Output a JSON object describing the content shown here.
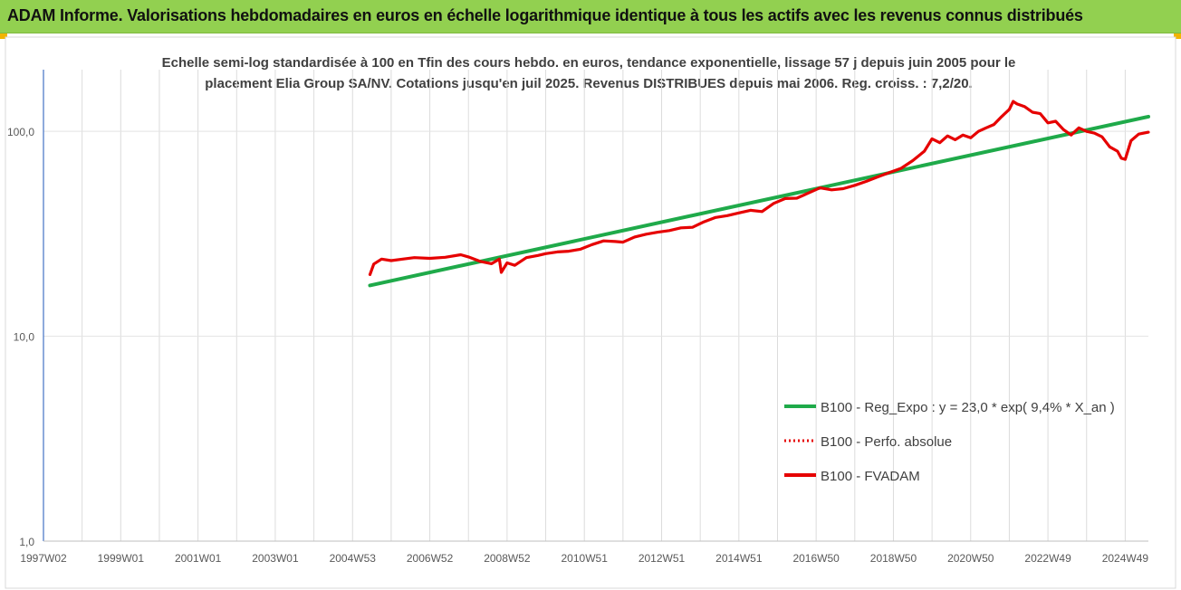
{
  "banner": {
    "title": "ADAM Informe. Valorisations hebdomadaires en euros en échelle logarithmique identique à tous les actifs avec les revenus connus distribués"
  },
  "colors": {
    "banner": "#92d050",
    "regression": "#1faa4a",
    "fvadam": "#e60000",
    "perfo": "#e60000",
    "grid": "#d9d9d9"
  },
  "chart_data": {
    "type": "line",
    "title_lines": [
      "Echelle semi-log standardisée à 100 en Tfin des cours hebdo. en euros, tendance exponentielle, lissage 57 j depuis juin 2005 pour le",
      "placement Elia Group SA/NV. Cotations jusqu'en juil 2025. Revenus DISTRIBUES depuis mai 2006. Reg. croiss. : 7,2/20."
    ],
    "y_scale": "log",
    "ylim": [
      1,
      200
    ],
    "y_ticks": [
      {
        "value": 1,
        "label": "1,0"
      },
      {
        "value": 10,
        "label": "10,0"
      },
      {
        "value": 100,
        "label": "100,0"
      }
    ],
    "x_range": [
      1997.0,
      2025.6
    ],
    "x_ticks": [
      {
        "year": 1997.0,
        "label": "1997W02"
      },
      {
        "year": 1999.0,
        "label": "1999W01"
      },
      {
        "year": 2001.0,
        "label": "2001W01"
      },
      {
        "year": 2003.0,
        "label": "2003W01"
      },
      {
        "year": 2005.0,
        "label": "2004W53"
      },
      {
        "year": 2007.0,
        "label": "2006W52"
      },
      {
        "year": 2009.0,
        "label": "2008W52"
      },
      {
        "year": 2011.0,
        "label": "2010W51"
      },
      {
        "year": 2013.0,
        "label": "2012W51"
      },
      {
        "year": 2015.0,
        "label": "2014W51"
      },
      {
        "year": 2017.0,
        "label": "2016W50"
      },
      {
        "year": 2019.0,
        "label": "2018W50"
      },
      {
        "year": 2021.0,
        "label": "2020W50"
      },
      {
        "year": 2023.0,
        "label": "2022W49"
      },
      {
        "year": 2025.0,
        "label": "2024W49"
      }
    ],
    "legend_position": "right",
    "series": [
      {
        "name": "B100 - Reg_Expo : y = 23,0 * exp( 9,4% *  X_an )",
        "style": "solid-green",
        "x": [
          2005.45,
          2025.6
        ],
        "y": [
          17.7,
          118.0
        ]
      },
      {
        "name": "B100 - Perfo. absolue",
        "style": "dotted-red",
        "x": [],
        "y": []
      },
      {
        "name": "B100 - FVADAM",
        "style": "solid-red",
        "x": [
          2005.45,
          2005.55,
          2005.75,
          2006.0,
          2006.3,
          2006.6,
          2007.0,
          2007.4,
          2007.8,
          2008.0,
          2008.3,
          2008.6,
          2008.8,
          2008.85,
          2009.0,
          2009.2,
          2009.5,
          2009.8,
          2010.0,
          2010.3,
          2010.6,
          2010.9,
          2011.2,
          2011.5,
          2011.8,
          2012.0,
          2012.3,
          2012.6,
          2012.9,
          2013.2,
          2013.5,
          2013.8,
          2014.1,
          2014.4,
          2014.7,
          2015.0,
          2015.3,
          2015.6,
          2015.9,
          2016.2,
          2016.5,
          2016.8,
          2017.1,
          2017.4,
          2017.7,
          2018.0,
          2018.3,
          2018.6,
          2018.9,
          2019.2,
          2019.5,
          2019.8,
          2020.0,
          2020.2,
          2020.4,
          2020.6,
          2020.8,
          2021.0,
          2021.2,
          2021.4,
          2021.6,
          2021.8,
          2022.0,
          2022.1,
          2022.2,
          2022.4,
          2022.6,
          2022.8,
          2023.0,
          2023.2,
          2023.4,
          2023.6,
          2023.8,
          2024.0,
          2024.2,
          2024.4,
          2024.6,
          2024.8,
          2024.9,
          2025.0,
          2025.15,
          2025.35,
          2025.6
        ],
        "y": [
          20.0,
          22.5,
          23.8,
          23.4,
          23.8,
          24.2,
          24.0,
          24.3,
          25.0,
          24.4,
          23.2,
          22.6,
          23.8,
          20.5,
          22.8,
          22.2,
          24.2,
          24.8,
          25.3,
          25.8,
          26.0,
          26.6,
          28.0,
          29.2,
          29.0,
          28.8,
          30.5,
          31.5,
          32.2,
          32.8,
          33.8,
          34.0,
          36.2,
          38.0,
          38.8,
          40.0,
          41.2,
          40.6,
          44.5,
          47.0,
          47.2,
          50.0,
          53.0,
          51.8,
          52.5,
          54.5,
          57.0,
          60.0,
          63.0,
          66.0,
          72.0,
          80.0,
          92.0,
          88.0,
          95.0,
          91.0,
          96.0,
          93.0,
          100.0,
          104.0,
          108.0,
          118.0,
          128.0,
          140.0,
          136.0,
          132.0,
          124.0,
          122.0,
          110.0,
          112.0,
          102.0,
          96.0,
          104.0,
          100.0,
          98.0,
          94.0,
          84.0,
          80.0,
          74.0,
          73.0,
          90.0,
          97.0,
          99.0
        ]
      }
    ]
  }
}
